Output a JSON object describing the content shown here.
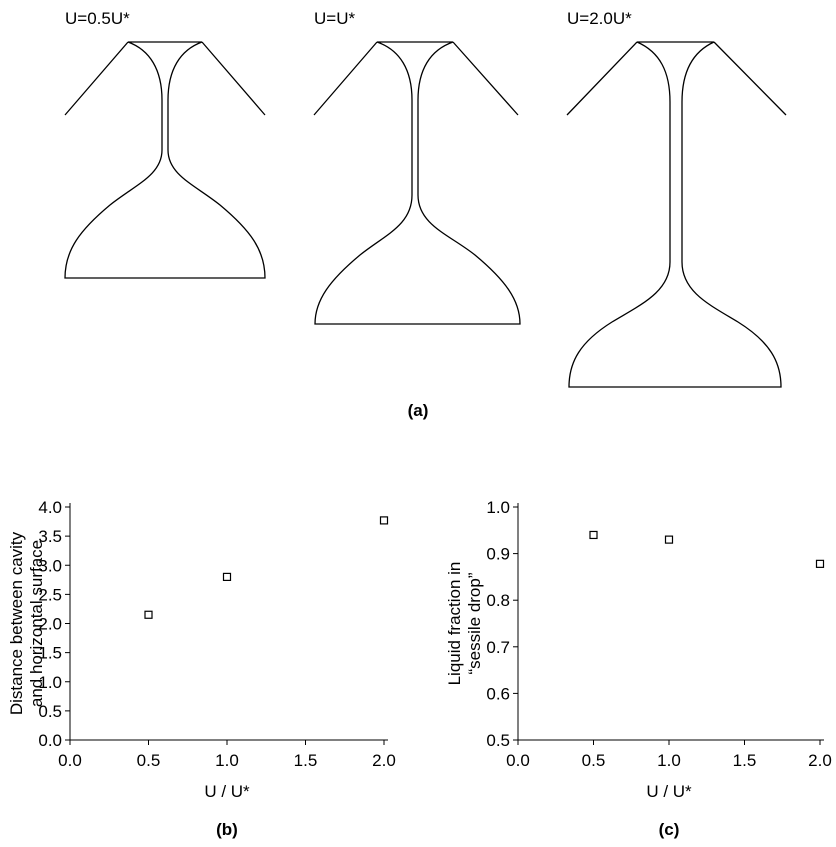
{
  "diagram": {
    "panels": [
      {
        "label": "U=0.5U*"
      },
      {
        "label": "U=U*"
      },
      {
        "label": "U=2.0U*"
      }
    ],
    "caption": "(a)"
  },
  "chart_data": [
    {
      "type": "scatter",
      "caption": "(b)",
      "xlabel": "U / U*",
      "ylabel": [
        "Distance between cavity",
        "and horizontal surface"
      ],
      "x": [
        0.5,
        1.0,
        2.0
      ],
      "values": [
        2.15,
        2.8,
        3.77
      ],
      "color": "#000000",
      "xlim": [
        0,
        2
      ],
      "xticks": [
        {
          "value": 0,
          "label": "0.0"
        },
        0.5,
        {
          "value": 1,
          "label": "1.0"
        },
        1.5,
        {
          "value": 2,
          "label": "2.0"
        }
      ],
      "ylim": [
        0,
        4
      ],
      "yticks": [
        {
          "value": 0,
          "label": "0.0"
        },
        0.5,
        {
          "value": 1,
          "label": "1.0"
        },
        1.5,
        {
          "value": 2,
          "label": "2.0"
        },
        2.5,
        {
          "value": 3,
          "label": "3.0"
        },
        3.5,
        {
          "value": 4,
          "label": "4.0"
        }
      ]
    },
    {
      "type": "scatter",
      "caption": "(c)",
      "xlabel": "U / U*",
      "ylabel": [
        "Liquid fraction in",
        "“sessile drop”"
      ],
      "x": [
        0.5,
        1.0,
        2.0
      ],
      "values": [
        0.94,
        0.93,
        0.878
      ],
      "color": "#000000",
      "xlim": [
        0,
        2
      ],
      "xticks": [
        {
          "value": 0,
          "label": "0.0"
        },
        0.5,
        {
          "value": 1,
          "label": "1.0"
        },
        1.5,
        {
          "value": 2,
          "label": "2.0"
        }
      ],
      "ylim": [
        0.5,
        1
      ],
      "yticks": [
        0.5,
        0.6,
        0.7,
        0.8,
        0.9,
        {
          "value": 1,
          "label": "1.0"
        }
      ]
    }
  ]
}
